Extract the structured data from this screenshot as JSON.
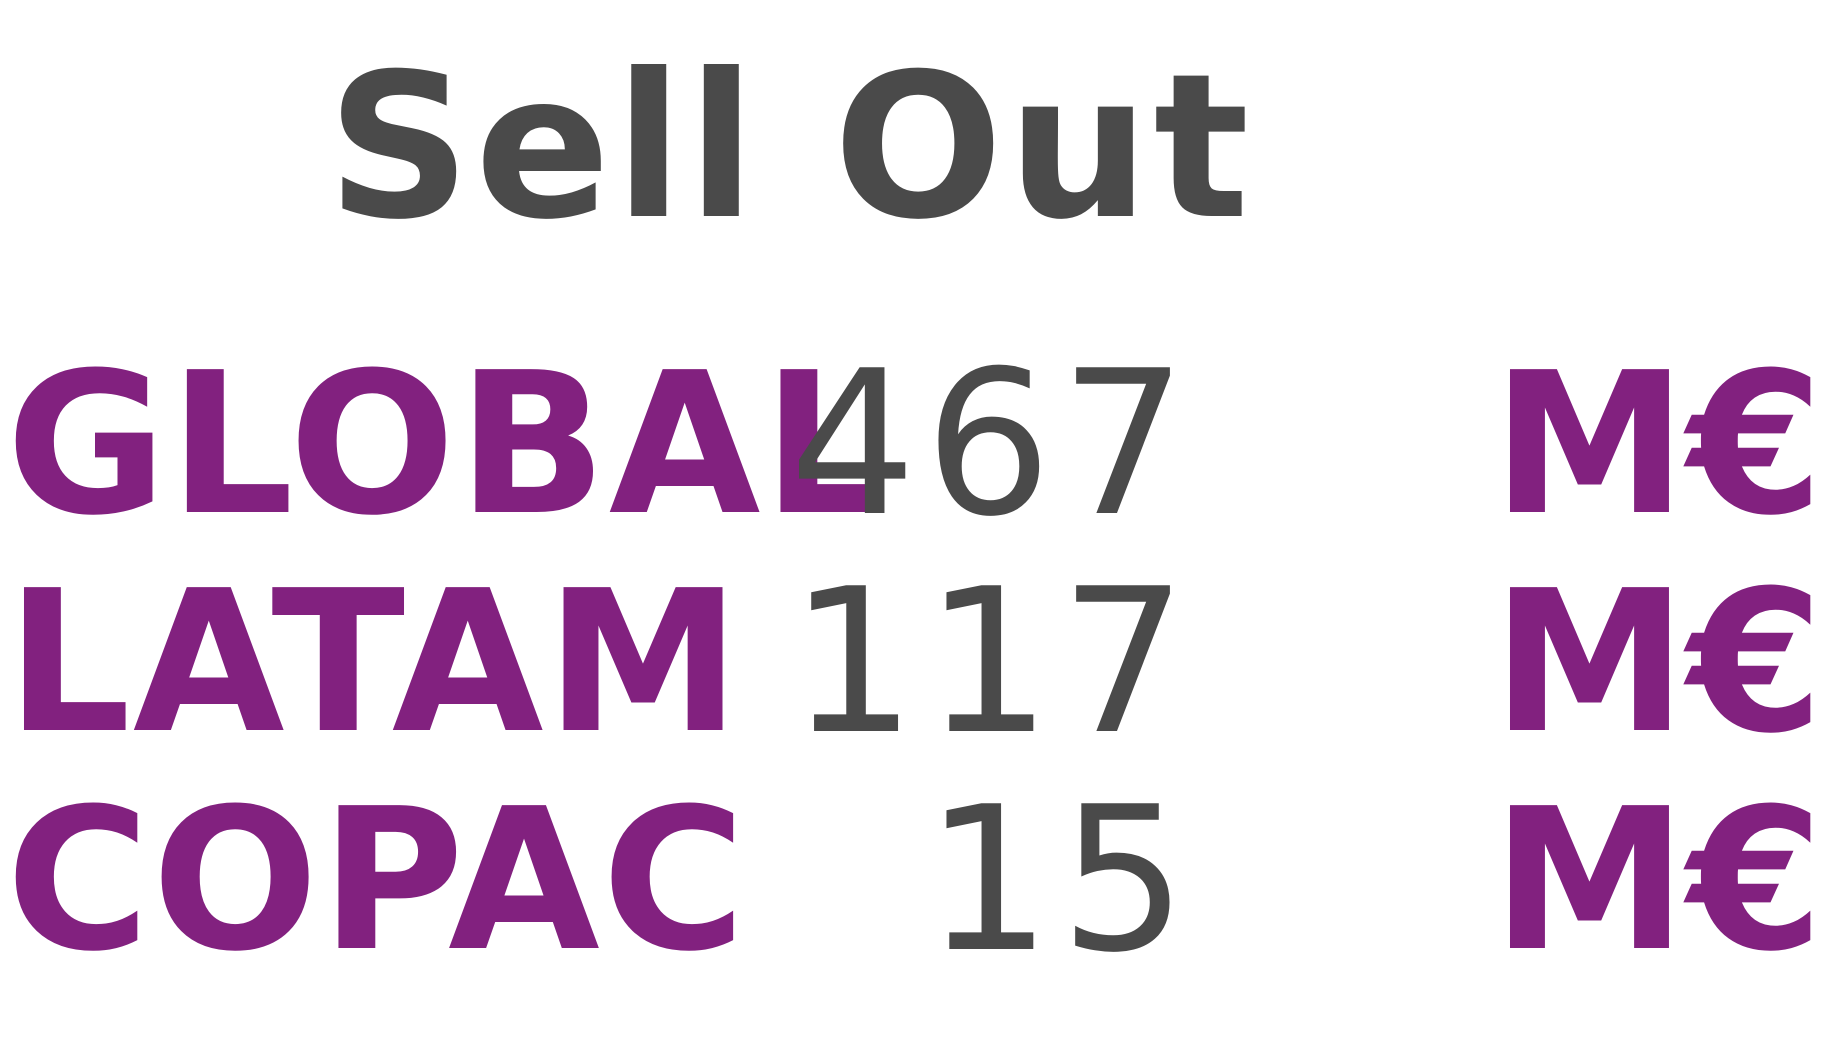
{
  "title": "Sell Out",
  "rows": [
    {
      "region": "GLOBAL",
      "value": "467",
      "unit": "M€"
    },
    {
      "region": "LATAM",
      "value": "117",
      "unit": "M€"
    },
    {
      "region": "COPAC",
      "value": "15",
      "unit": "M€"
    }
  ],
  "colors": {
    "accent": "#82217f",
    "text": "#4a4a4a",
    "background": "#ffffff"
  }
}
